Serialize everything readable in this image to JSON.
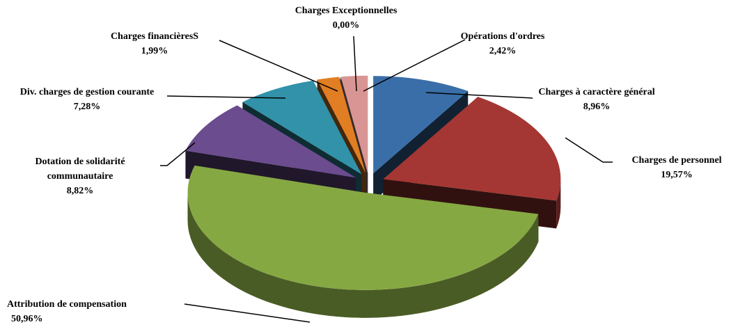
{
  "chart_data": {
    "type": "pie",
    "categories": [
      "Charges à caractère général",
      "Charges de personnel",
      "Attribution de compensation",
      "Dotation de solidarité communautaire",
      "Div. charges de gestion courante",
      "Charges financièresS",
      "Charges Exceptionnelles",
      "Opérations d'ordres"
    ],
    "values": [
      8.96,
      19.57,
      50.96,
      8.82,
      7.28,
      1.99,
      0.0,
      2.42
    ],
    "value_labels": [
      "8,96%",
      "19,57%",
      "50,96%",
      "8,82%",
      "7,28%",
      "1,99%",
      "0,00%",
      "2,42%"
    ],
    "colors": [
      "#3a6ea8",
      "#a43733",
      "#86a843",
      "#6b4c8e",
      "#3192a9",
      "#e17d22",
      "#8c8c8c",
      "#d99593"
    ]
  }
}
